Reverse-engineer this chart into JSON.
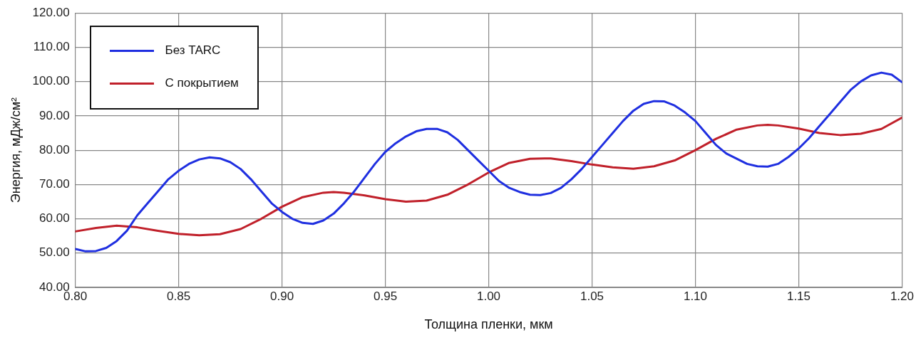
{
  "chart_data": {
    "type": "line",
    "xlabel": "Толщина пленки, мкм",
    "ylabel": "Энергия, мДж/см²",
    "xlim": [
      0.8,
      1.2
    ],
    "xticks": [
      {
        "value": 0.8,
        "label": "0.80"
      },
      {
        "value": 0.85,
        "label": "0.85"
      },
      {
        "value": 0.9,
        "label": "0.90"
      },
      {
        "value": 0.95,
        "label": "0.95"
      },
      {
        "value": 1.0,
        "label": "1.00"
      },
      {
        "value": 1.05,
        "label": "1.05"
      },
      {
        "value": 1.1,
        "label": "1.10"
      },
      {
        "value": 1.15,
        "label": "1.15"
      },
      {
        "value": 1.2,
        "label": "1.20"
      }
    ],
    "ylim": [
      40,
      120
    ],
    "yticks": [
      {
        "value": 40,
        "label": "40.00"
      },
      {
        "value": 50,
        "label": "50.00"
      },
      {
        "value": 60,
        "label": "60.00"
      },
      {
        "value": 70,
        "label": "70.00"
      },
      {
        "value": 80,
        "label": "80.00"
      },
      {
        "value": 90,
        "label": "90.00"
      },
      {
        "value": 100,
        "label": "100.00"
      },
      {
        "value": 110,
        "label": "110.00"
      },
      {
        "value": 120,
        "label": "120.00"
      }
    ],
    "grid": true,
    "legend": "top left",
    "marker": "none",
    "line_style": "solid",
    "series": [
      {
        "name": "Без TARC",
        "color": "#1f2fe0",
        "x": [
          0.8,
          0.805,
          0.81,
          0.815,
          0.82,
          0.825,
          0.83,
          0.835,
          0.84,
          0.845,
          0.85,
          0.855,
          0.86,
          0.865,
          0.87,
          0.875,
          0.88,
          0.885,
          0.89,
          0.895,
          0.9,
          0.905,
          0.91,
          0.915,
          0.92,
          0.925,
          0.93,
          0.935,
          0.94,
          0.945,
          0.95,
          0.955,
          0.96,
          0.965,
          0.97,
          0.975,
          0.98,
          0.985,
          0.99,
          0.995,
          1.0,
          1.005,
          1.01,
          1.015,
          1.02,
          1.025,
          1.03,
          1.035,
          1.04,
          1.045,
          1.05,
          1.055,
          1.06,
          1.065,
          1.07,
          1.075,
          1.08,
          1.085,
          1.09,
          1.095,
          1.1,
          1.105,
          1.11,
          1.115,
          1.12,
          1.125,
          1.13,
          1.135,
          1.14,
          1.145,
          1.15,
          1.155,
          1.16,
          1.165,
          1.17,
          1.175,
          1.18,
          1.185,
          1.19,
          1.195,
          1.2
        ],
        "values": [
          51.2,
          50.5,
          50.6,
          51.5,
          53.5,
          56.5,
          61,
          64.5,
          68,
          71.5,
          74,
          76,
          77.3,
          77.9,
          77.6,
          76.5,
          74.5,
          71.5,
          68,
          64.5,
          62,
          60,
          58.8,
          58.5,
          59.5,
          61.5,
          64.5,
          68,
          72,
          76,
          79.5,
          82,
          84,
          85.5,
          86.2,
          86.2,
          85.2,
          83,
          80,
          77,
          74,
          71,
          69,
          67.8,
          67,
          66.9,
          67.5,
          69,
          71.5,
          74.5,
          78,
          81.5,
          85,
          88.5,
          91.5,
          93.5,
          94.3,
          94.2,
          93,
          91,
          88.5,
          85,
          81.5,
          79,
          77.5,
          76,
          75.3,
          75.2,
          76,
          78,
          80.5,
          83.5,
          87,
          90.5,
          94,
          97.5,
          100,
          101.8,
          102.6,
          102,
          99.8
        ]
      },
      {
        "name": "С покрытием",
        "color": "#c0202a",
        "x": [
          0.8,
          0.81,
          0.82,
          0.83,
          0.84,
          0.85,
          0.86,
          0.87,
          0.88,
          0.89,
          0.9,
          0.91,
          0.92,
          0.925,
          0.93,
          0.94,
          0.95,
          0.96,
          0.97,
          0.98,
          0.99,
          1.0,
          1.01,
          1.02,
          1.03,
          1.04,
          1.05,
          1.06,
          1.07,
          1.08,
          1.09,
          1.1,
          1.11,
          1.12,
          1.13,
          1.135,
          1.14,
          1.15,
          1.16,
          1.17,
          1.18,
          1.19,
          1.2
        ],
        "values": [
          56.3,
          57.3,
          58,
          57.5,
          56.5,
          55.6,
          55.2,
          55.5,
          57,
          60,
          63.5,
          66.3,
          67.6,
          67.8,
          67.6,
          66.8,
          65.7,
          65,
          65.3,
          67,
          70,
          73.5,
          76.3,
          77.5,
          77.6,
          76.8,
          75.8,
          75,
          74.6,
          75.3,
          77,
          80,
          83.3,
          86,
          87.2,
          87.4,
          87.2,
          86.3,
          85,
          84.4,
          84.8,
          86.2,
          89.5
        ]
      }
    ]
  }
}
